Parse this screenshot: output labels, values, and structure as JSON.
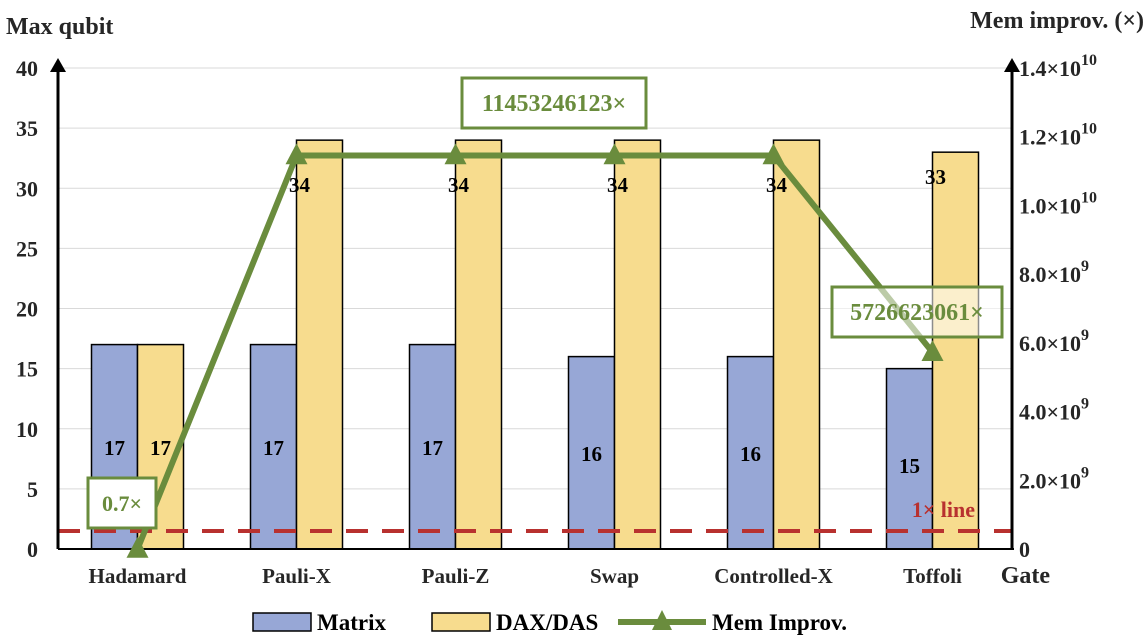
{
  "chart_data": {
    "type": "bar",
    "ylabel": "Max qubit",
    "y2label": "Mem improv. (×)",
    "xlabel": "Gate",
    "categories": [
      "Hadamard",
      "Pauli-X",
      "Pauli-Z",
      "Swap",
      "Controlled-X",
      "Toffoli"
    ],
    "ylim": [
      0,
      40
    ],
    "yticks": [
      "0",
      "5",
      "10",
      "15",
      "20",
      "25",
      "30",
      "35",
      "40"
    ],
    "y2lim": [
      0,
      14000000000
    ],
    "y2ticks": [
      {
        "base": "0",
        "exp": ""
      },
      {
        "base": "2.0×10",
        "exp": "9"
      },
      {
        "base": "4.0×10",
        "exp": "9"
      },
      {
        "base": "6.0×10",
        "exp": "9"
      },
      {
        "base": "8.0×10",
        "exp": "9"
      },
      {
        "base": "1.0×10",
        "exp": "10"
      },
      {
        "base": "1.2×10",
        "exp": "10"
      },
      {
        "base": "1.4×10",
        "exp": "10"
      }
    ],
    "series": [
      {
        "name": "Matrix",
        "axis": "left",
        "kind": "bar",
        "color": "#97a7d6",
        "values": [
          17,
          17,
          17,
          16,
          16,
          15
        ],
        "labels": [
          "17",
          "17",
          "17",
          "16",
          "16",
          "15"
        ]
      },
      {
        "name": "DAX/DAS",
        "axis": "left",
        "kind": "bar",
        "color": "#f7dc8e",
        "values": [
          17,
          34,
          34,
          34,
          34,
          33
        ],
        "labels": [
          "17",
          "34",
          "34",
          "34",
          "34",
          "33"
        ]
      },
      {
        "name": "Mem Improv.",
        "axis": "right",
        "kind": "line",
        "color": "#6a8c3d",
        "values": [
          0.7,
          11453246123,
          11453246123,
          11453246123,
          11453246123,
          5726623061
        ]
      }
    ],
    "annotations": [
      {
        "text": "0.7×",
        "point": 0
      },
      {
        "text": "11453246123×",
        "point": 2
      },
      {
        "text": "5726623061×",
        "point": 5
      }
    ],
    "reference_line": {
      "label": "1× line",
      "color": "#b8312f"
    },
    "legend": {
      "placement": "bottom"
    },
    "grid": true
  }
}
